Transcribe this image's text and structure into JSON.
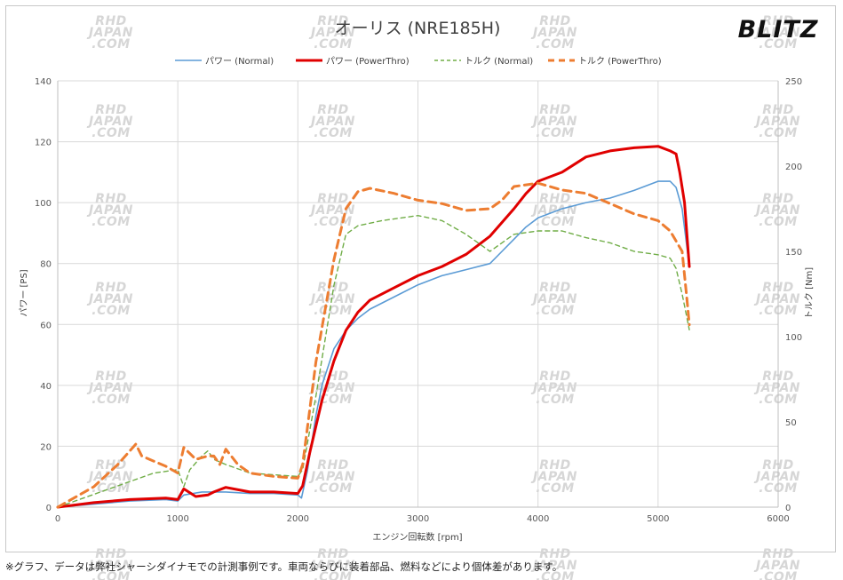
{
  "footnote": "※グラフ、データは弊社シャーシダイナモでの計測事例です。車両ならびに装着部品、燃料などにより個体差があります。",
  "logo": "BLITZ",
  "watermark_lines": [
    "RHD",
    "JAPAN",
    ".COM"
  ],
  "chart_data": {
    "type": "line",
    "title": "オーリス (NRE185H)",
    "xlabel": "エンジン回転数 [rpm]",
    "ylabel_left": "パワー [PS]",
    "ylabel_right": "トルク [Nm]",
    "xlim": [
      0,
      6000
    ],
    "ylim_left": [
      0,
      140
    ],
    "ylim_right": [
      0,
      250
    ],
    "x_ticks": [
      0,
      1000,
      2000,
      3000,
      4000,
      5000,
      6000
    ],
    "y_ticks_left": [
      0,
      20,
      40,
      60,
      80,
      100,
      120,
      140
    ],
    "y_ticks_right": [
      0,
      50,
      100,
      150,
      200,
      250
    ],
    "grid": true,
    "legend_position": "top",
    "series": [
      {
        "name": "パワー (Normal)",
        "axis": "left",
        "color": "#5b9bd5",
        "style": "solid",
        "points": [
          [
            0,
            0
          ],
          [
            300,
            1
          ],
          [
            600,
            2
          ],
          [
            900,
            2.5
          ],
          [
            1000,
            2
          ],
          [
            1050,
            4
          ],
          [
            1200,
            5
          ],
          [
            1400,
            5
          ],
          [
            1600,
            4.5
          ],
          [
            1800,
            4.5
          ],
          [
            2000,
            4
          ],
          [
            2030,
            3
          ],
          [
            2080,
            12
          ],
          [
            2150,
            30
          ],
          [
            2200,
            40
          ],
          [
            2300,
            52
          ],
          [
            2400,
            58
          ],
          [
            2500,
            62
          ],
          [
            2600,
            65
          ],
          [
            2800,
            69
          ],
          [
            3000,
            73
          ],
          [
            3200,
            76
          ],
          [
            3400,
            78
          ],
          [
            3600,
            80
          ],
          [
            3700,
            84
          ],
          [
            3800,
            88
          ],
          [
            3900,
            92
          ],
          [
            4000,
            95
          ],
          [
            4200,
            98
          ],
          [
            4400,
            100
          ],
          [
            4600,
            101.5
          ],
          [
            4800,
            104
          ],
          [
            5000,
            107
          ],
          [
            5100,
            107
          ],
          [
            5150,
            105
          ],
          [
            5200,
            98
          ],
          [
            5260,
            79
          ]
        ]
      },
      {
        "name": "パワー (PowerThro)",
        "axis": "left",
        "color": "#e00000",
        "style": "solid",
        "points": [
          [
            0,
            0
          ],
          [
            300,
            1.5
          ],
          [
            600,
            2.5
          ],
          [
            900,
            3
          ],
          [
            1000,
            2.5
          ],
          [
            1050,
            6
          ],
          [
            1150,
            3.5
          ],
          [
            1250,
            4
          ],
          [
            1300,
            5
          ],
          [
            1400,
            6.5
          ],
          [
            1600,
            5
          ],
          [
            1800,
            5
          ],
          [
            2000,
            4.5
          ],
          [
            2040,
            7
          ],
          [
            2100,
            18
          ],
          [
            2200,
            35
          ],
          [
            2300,
            48
          ],
          [
            2400,
            58
          ],
          [
            2500,
            64
          ],
          [
            2600,
            68
          ],
          [
            2800,
            72
          ],
          [
            3000,
            76
          ],
          [
            3200,
            79
          ],
          [
            3400,
            83
          ],
          [
            3600,
            89
          ],
          [
            3800,
            98
          ],
          [
            3900,
            103
          ],
          [
            4000,
            107
          ],
          [
            4200,
            110
          ],
          [
            4400,
            115
          ],
          [
            4600,
            117
          ],
          [
            4800,
            118
          ],
          [
            5000,
            118.5
          ],
          [
            5100,
            117
          ],
          [
            5150,
            116
          ],
          [
            5180,
            110
          ],
          [
            5220,
            100
          ],
          [
            5260,
            79
          ]
        ]
      },
      {
        "name": "トルク (Normal)",
        "axis": "right",
        "color": "#70ad47",
        "style": "dash",
        "points": [
          [
            0,
            0
          ],
          [
            400,
            10
          ],
          [
            800,
            20
          ],
          [
            1000,
            22
          ],
          [
            1050,
            12
          ],
          [
            1100,
            22
          ],
          [
            1200,
            30
          ],
          [
            1250,
            33
          ],
          [
            1300,
            28
          ],
          [
            1400,
            25
          ],
          [
            1600,
            20
          ],
          [
            1800,
            19
          ],
          [
            2000,
            18
          ],
          [
            2040,
            22
          ],
          [
            2150,
            65
          ],
          [
            2300,
            130
          ],
          [
            2400,
            160
          ],
          [
            2500,
            165
          ],
          [
            2700,
            168
          ],
          [
            3000,
            171
          ],
          [
            3200,
            168
          ],
          [
            3400,
            160
          ],
          [
            3600,
            150
          ],
          [
            3800,
            160
          ],
          [
            4000,
            162
          ],
          [
            4200,
            162
          ],
          [
            4400,
            158
          ],
          [
            4600,
            155
          ],
          [
            4800,
            150
          ],
          [
            5000,
            148
          ],
          [
            5100,
            146
          ],
          [
            5150,
            140
          ],
          [
            5200,
            125
          ],
          [
            5260,
            104
          ]
        ]
      },
      {
        "name": "トルク (PowerThro)",
        "axis": "right",
        "color": "#ed7d31",
        "style": "dash",
        "points": [
          [
            0,
            0
          ],
          [
            300,
            12
          ],
          [
            500,
            25
          ],
          [
            650,
            37
          ],
          [
            700,
            30
          ],
          [
            800,
            27
          ],
          [
            900,
            24
          ],
          [
            1000,
            20
          ],
          [
            1050,
            35
          ],
          [
            1150,
            28
          ],
          [
            1250,
            30
          ],
          [
            1300,
            30
          ],
          [
            1350,
            25
          ],
          [
            1400,
            34
          ],
          [
            1500,
            25
          ],
          [
            1600,
            20
          ],
          [
            1800,
            18
          ],
          [
            2000,
            17
          ],
          [
            2040,
            25
          ],
          [
            2150,
            85
          ],
          [
            2300,
            145
          ],
          [
            2400,
            175
          ],
          [
            2500,
            185
          ],
          [
            2600,
            187
          ],
          [
            2800,
            184
          ],
          [
            3000,
            180
          ],
          [
            3200,
            178
          ],
          [
            3400,
            174
          ],
          [
            3600,
            175
          ],
          [
            3700,
            180
          ],
          [
            3800,
            188
          ],
          [
            3900,
            189
          ],
          [
            4000,
            190
          ],
          [
            4200,
            186
          ],
          [
            4400,
            184
          ],
          [
            4600,
            178
          ],
          [
            4800,
            172
          ],
          [
            5000,
            168
          ],
          [
            5100,
            162
          ],
          [
            5200,
            150
          ],
          [
            5240,
            122
          ],
          [
            5260,
            107
          ]
        ]
      }
    ]
  }
}
